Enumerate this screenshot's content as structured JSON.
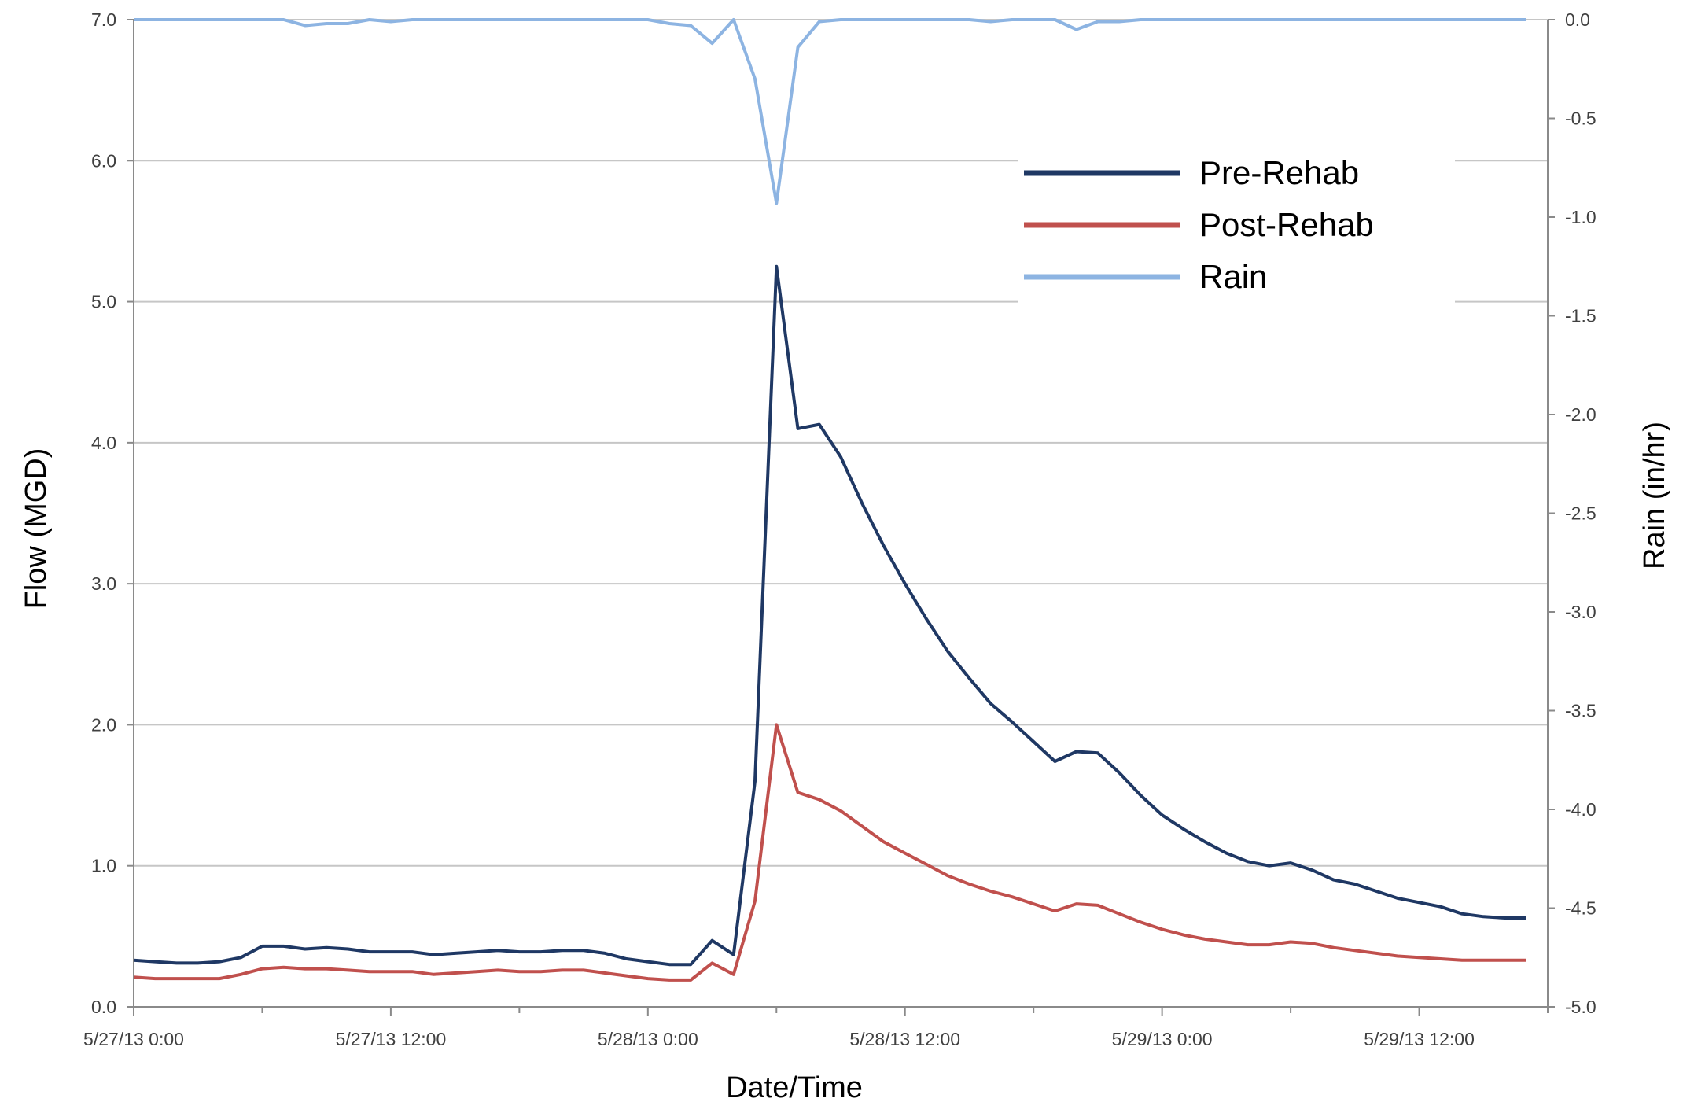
{
  "chart_data": {
    "type": "line",
    "title": "",
    "xlabel": "Date/Time",
    "ylabel": "Flow (MGD)",
    "y2label": "Rain (in/hr)",
    "ylim": [
      0,
      7
    ],
    "y2lim": [
      -5,
      0
    ],
    "xlim": [
      "5/27/13 0:00",
      "5/29/13 18:00"
    ],
    "x_tick_labels": [
      "5/27/13 0:00",
      "5/27/13 12:00",
      "5/28/13 0:00",
      "5/28/13 12:00",
      "5/29/13 0:00",
      "5/29/13 12:00"
    ],
    "y_tick_labels": [
      "0.0",
      "1.0",
      "2.0",
      "3.0",
      "4.0",
      "5.0",
      "6.0",
      "7.0"
    ],
    "y2_tick_labels": [
      "0.0",
      "-0.5",
      "-1.0",
      "-1.5",
      "-2.0",
      "-2.5",
      "-3.0",
      "-3.5",
      "-4.0",
      "-4.5",
      "-5.0"
    ],
    "grid": true,
    "legend_position": "top-right",
    "x_hours": [
      0,
      1,
      2,
      3,
      4,
      5,
      6,
      7,
      8,
      9,
      10,
      11,
      12,
      13,
      14,
      15,
      16,
      17,
      18,
      19,
      20,
      21,
      22,
      23,
      24,
      25,
      26,
      27,
      28,
      29,
      30,
      31,
      32,
      33,
      34,
      35,
      36,
      37,
      38,
      39,
      40,
      41,
      42,
      43,
      44,
      45,
      46,
      47,
      48,
      49,
      50,
      51,
      52,
      53,
      54,
      55,
      56,
      57,
      58,
      59,
      60,
      61,
      62,
      63,
      64,
      65
    ],
    "series": [
      {
        "name": "Pre-Rehab",
        "color": "#1f3864",
        "axis": "left",
        "values": [
          0.33,
          0.32,
          0.31,
          0.31,
          0.32,
          0.35,
          0.43,
          0.43,
          0.41,
          0.42,
          0.41,
          0.39,
          0.39,
          0.39,
          0.37,
          0.38,
          0.39,
          0.4,
          0.39,
          0.39,
          0.4,
          0.4,
          0.38,
          0.34,
          0.32,
          0.3,
          0.3,
          0.47,
          0.37,
          1.6,
          5.25,
          4.1,
          4.13,
          3.9,
          3.57,
          3.27,
          3.0,
          2.75,
          2.52,
          2.33,
          2.15,
          2.02,
          1.88,
          1.74,
          1.81,
          1.8,
          1.66,
          1.5,
          1.36,
          1.26,
          1.17,
          1.09,
          1.03,
          1.0,
          1.02,
          0.97,
          0.9,
          0.87,
          0.82,
          0.77,
          0.74,
          0.71,
          0.66,
          0.64,
          0.63,
          0.63
        ]
      },
      {
        "name": "Post-Rehab",
        "color": "#c0504d",
        "axis": "left",
        "values": [
          0.21,
          0.2,
          0.2,
          0.2,
          0.2,
          0.23,
          0.27,
          0.28,
          0.27,
          0.27,
          0.26,
          0.25,
          0.25,
          0.25,
          0.23,
          0.24,
          0.25,
          0.26,
          0.25,
          0.25,
          0.26,
          0.26,
          0.24,
          0.22,
          0.2,
          0.19,
          0.19,
          0.31,
          0.23,
          0.75,
          2.0,
          1.52,
          1.47,
          1.39,
          1.28,
          1.17,
          1.09,
          1.01,
          0.93,
          0.87,
          0.82,
          0.78,
          0.73,
          0.68,
          0.73,
          0.72,
          0.66,
          0.6,
          0.55,
          0.51,
          0.48,
          0.46,
          0.44,
          0.44,
          0.46,
          0.45,
          0.42,
          0.4,
          0.38,
          0.36,
          0.35,
          0.34,
          0.33,
          0.33,
          0.33,
          0.33
        ]
      },
      {
        "name": "Rain",
        "color": "#8db4e2",
        "axis": "right",
        "values": [
          0,
          0,
          0,
          0,
          0,
          0,
          0,
          0,
          -0.03,
          -0.02,
          -0.02,
          0,
          -0.01,
          0,
          0,
          0,
          0,
          0,
          0,
          0,
          0,
          0,
          0,
          0,
          0,
          -0.02,
          -0.03,
          -0.12,
          0,
          -0.3,
          -0.93,
          -0.14,
          -0.01,
          0,
          0,
          0,
          0,
          0,
          0,
          0,
          -0.01,
          0,
          0,
          0,
          -0.05,
          -0.01,
          -0.01,
          0,
          0,
          0,
          0,
          0,
          0,
          0,
          0,
          0,
          0,
          0,
          0,
          0,
          0,
          0,
          0,
          0,
          0,
          0
        ]
      }
    ]
  }
}
